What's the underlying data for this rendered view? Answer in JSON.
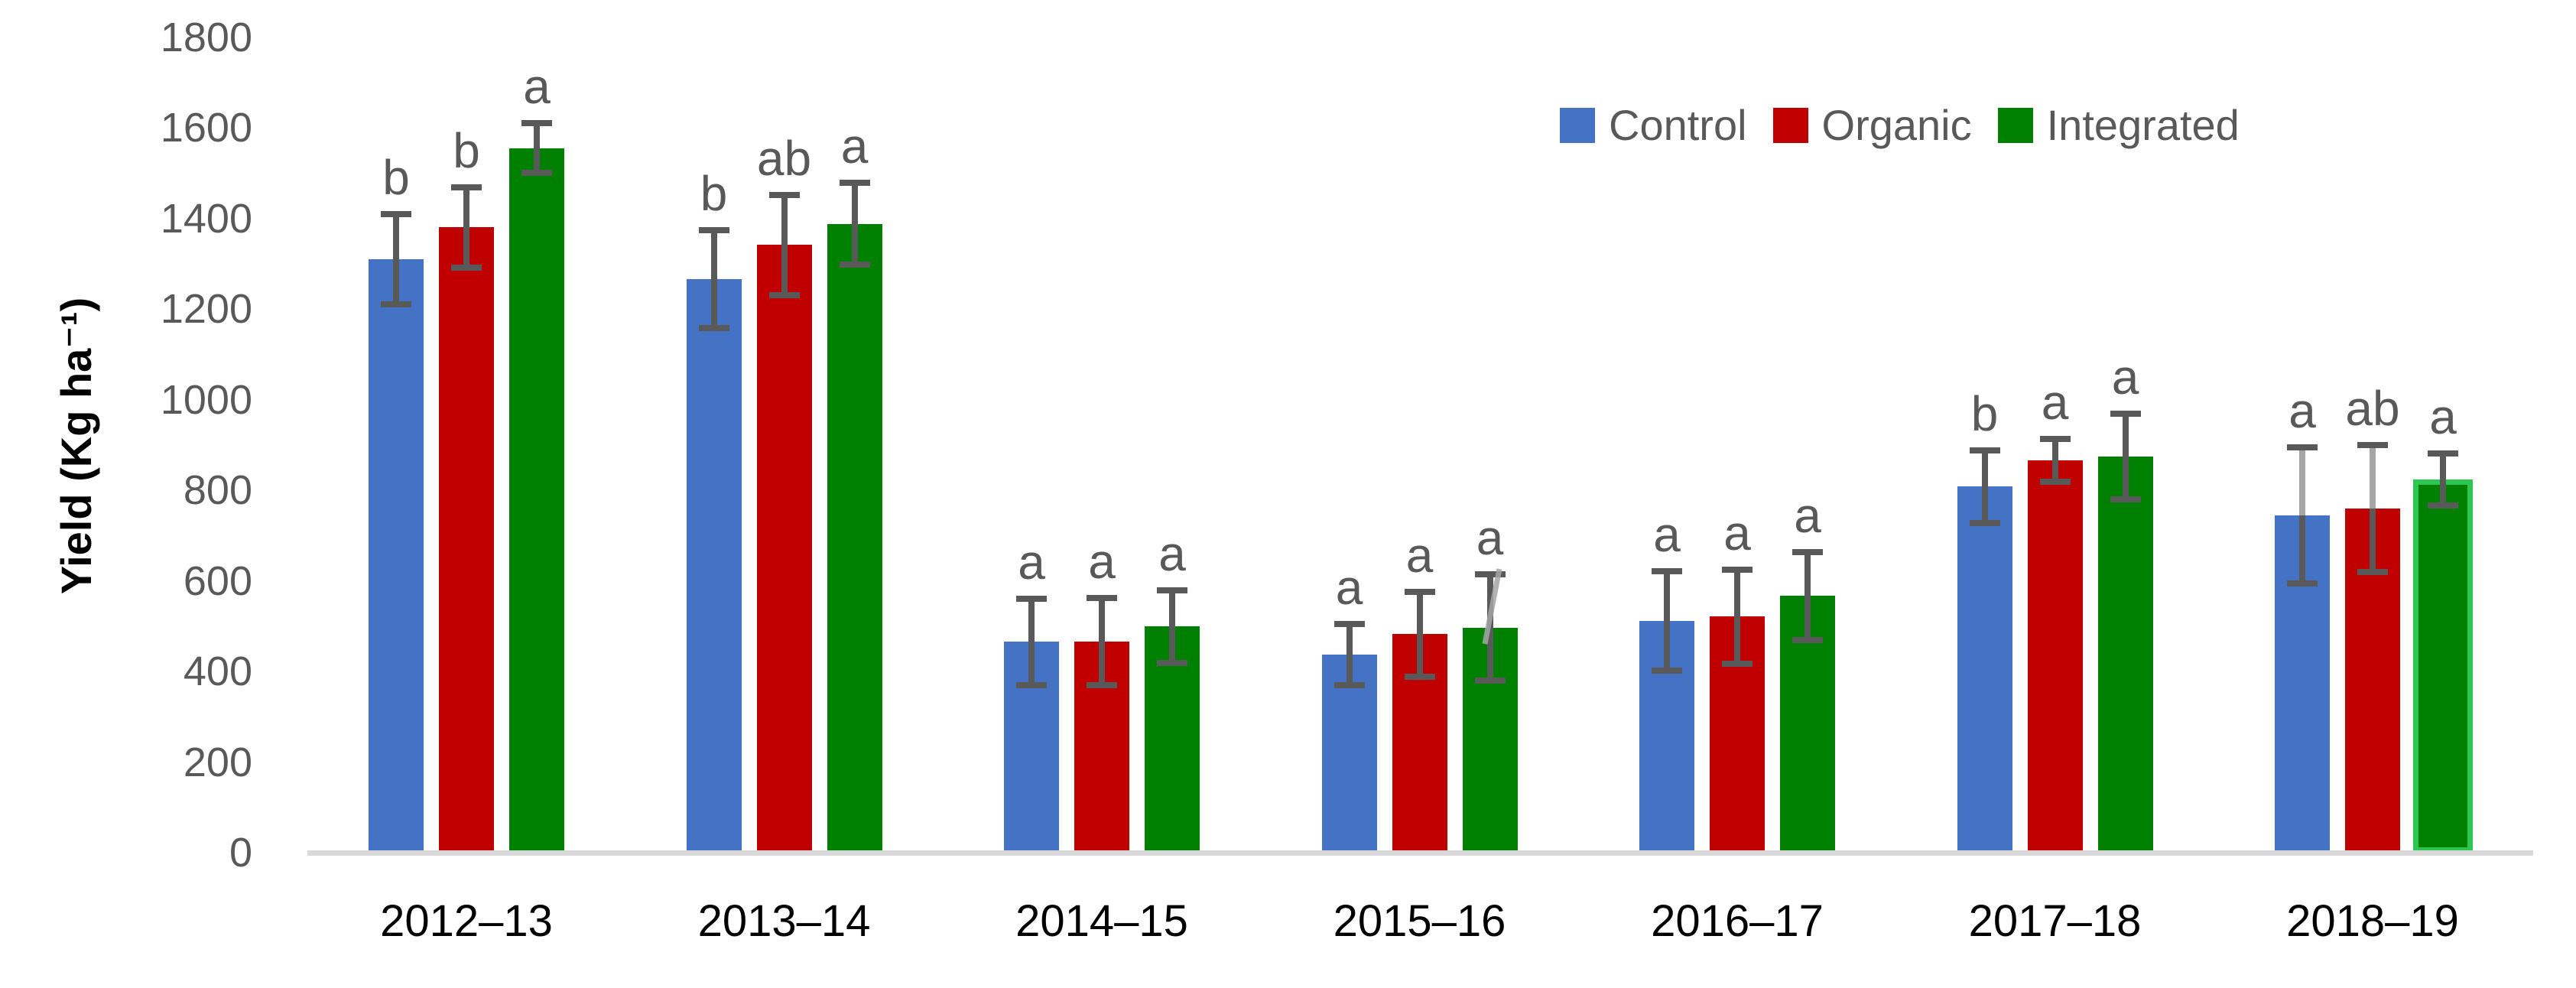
{
  "chart_data": {
    "type": "bar",
    "title": "",
    "xlabel": "",
    "ylabel": "Yield (Kg ha⁻¹)",
    "ylim": [
      0,
      1800
    ],
    "yticks": [
      0,
      200,
      400,
      600,
      800,
      1000,
      1200,
      1400,
      1600,
      1800
    ],
    "grid": false,
    "legend_position": "top-right",
    "categories": [
      "2012–13",
      "2013–14",
      "2014–15",
      "2015–16",
      "2016–17",
      "2017–18",
      "2018–19"
    ],
    "series": [
      {
        "name": "Control",
        "color": "#4472C4",
        "values": [
          1310,
          1265,
          465,
          437,
          511,
          808,
          744
        ],
        "errors": [
          100,
          108,
          95,
          68,
          110,
          80,
          150
        ],
        "letters": [
          "b",
          "b",
          "a",
          "a",
          "a",
          "b",
          "a"
        ]
      },
      {
        "name": "Organic",
        "color": "#C00000",
        "values": [
          1380,
          1341,
          466,
          482,
          521,
          866,
          759
        ],
        "errors": [
          89,
          110,
          96,
          93,
          104,
          47,
          140
        ],
        "letters": [
          "b",
          "ab",
          "a",
          "a",
          "a",
          "a",
          "ab"
        ]
      },
      {
        "name": "Integrated",
        "color": "#008000",
        "values": [
          1555,
          1388,
          499,
          497,
          567,
          874,
          824
        ],
        "errors": [
          55,
          90,
          80,
          118,
          97,
          95,
          57
        ],
        "letters": [
          "a",
          "a",
          "a",
          "a",
          "a",
          "a",
          "a"
        ],
        "highlight": {
          "index": 6,
          "color": "#2DC653"
        }
      }
    ],
    "style": {
      "error_bar_color": "#595959",
      "light_stem_color": "#A6A6A6",
      "light_stem": [
        {
          "series": 0,
          "index": 6
        },
        {
          "series": 1,
          "index": 6
        }
      ],
      "letter_color": "#595959",
      "ytick_label_color": "#595959",
      "xtick_label_color": "#000000",
      "axis_line_color": "#D9D9D9",
      "legend_text_color": "#595959"
    }
  }
}
